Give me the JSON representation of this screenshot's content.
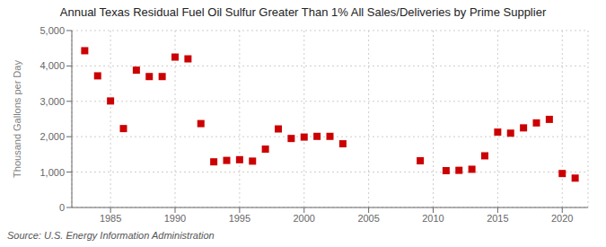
{
  "chart_data": {
    "type": "scatter",
    "title": "Annual Texas Residual Fuel Oil Sulfur Greater Than 1% All Sales/Deliveries by Prime Supplier",
    "ylabel": "Thousand Gallons per Day",
    "annotations": [
      "Source: U.S. Energy Information Administration"
    ],
    "color": "#cc0000",
    "marker": "square",
    "grid": true,
    "x": [
      1983,
      1984,
      1985,
      1986,
      1987,
      1988,
      1989,
      1990,
      1991,
      1992,
      1993,
      1994,
      1995,
      1996,
      1997,
      1998,
      1999,
      2000,
      2001,
      2002,
      2003,
      2009,
      2011,
      2012,
      2013,
      2014,
      2015,
      2016,
      2017,
      2018,
      2019,
      2020,
      2021
    ],
    "values": [
      4430,
      3720,
      3010,
      2230,
      3880,
      3700,
      3700,
      4250,
      4200,
      2370,
      1290,
      1330,
      1350,
      1310,
      1650,
      2220,
      1950,
      1990,
      2010,
      2010,
      1800,
      1320,
      1040,
      1050,
      1080,
      1460,
      2130,
      2100,
      2250,
      2390,
      2490,
      960,
      830
    ],
    "xlim": [
      1982,
      2022
    ],
    "xticks": [
      1985,
      1990,
      1995,
      2000,
      2005,
      2010,
      2015,
      2020
    ],
    "ylim": [
      0,
      5000
    ],
    "yticks": [
      0,
      {
        "value": 1000,
        "label": "1,000"
      },
      {
        "value": 2000,
        "label": "2,000"
      },
      {
        "value": 3000,
        "label": "3,000"
      },
      {
        "value": 4000,
        "label": "4,000"
      },
      {
        "value": 5000,
        "label": "5,000"
      }
    ]
  }
}
